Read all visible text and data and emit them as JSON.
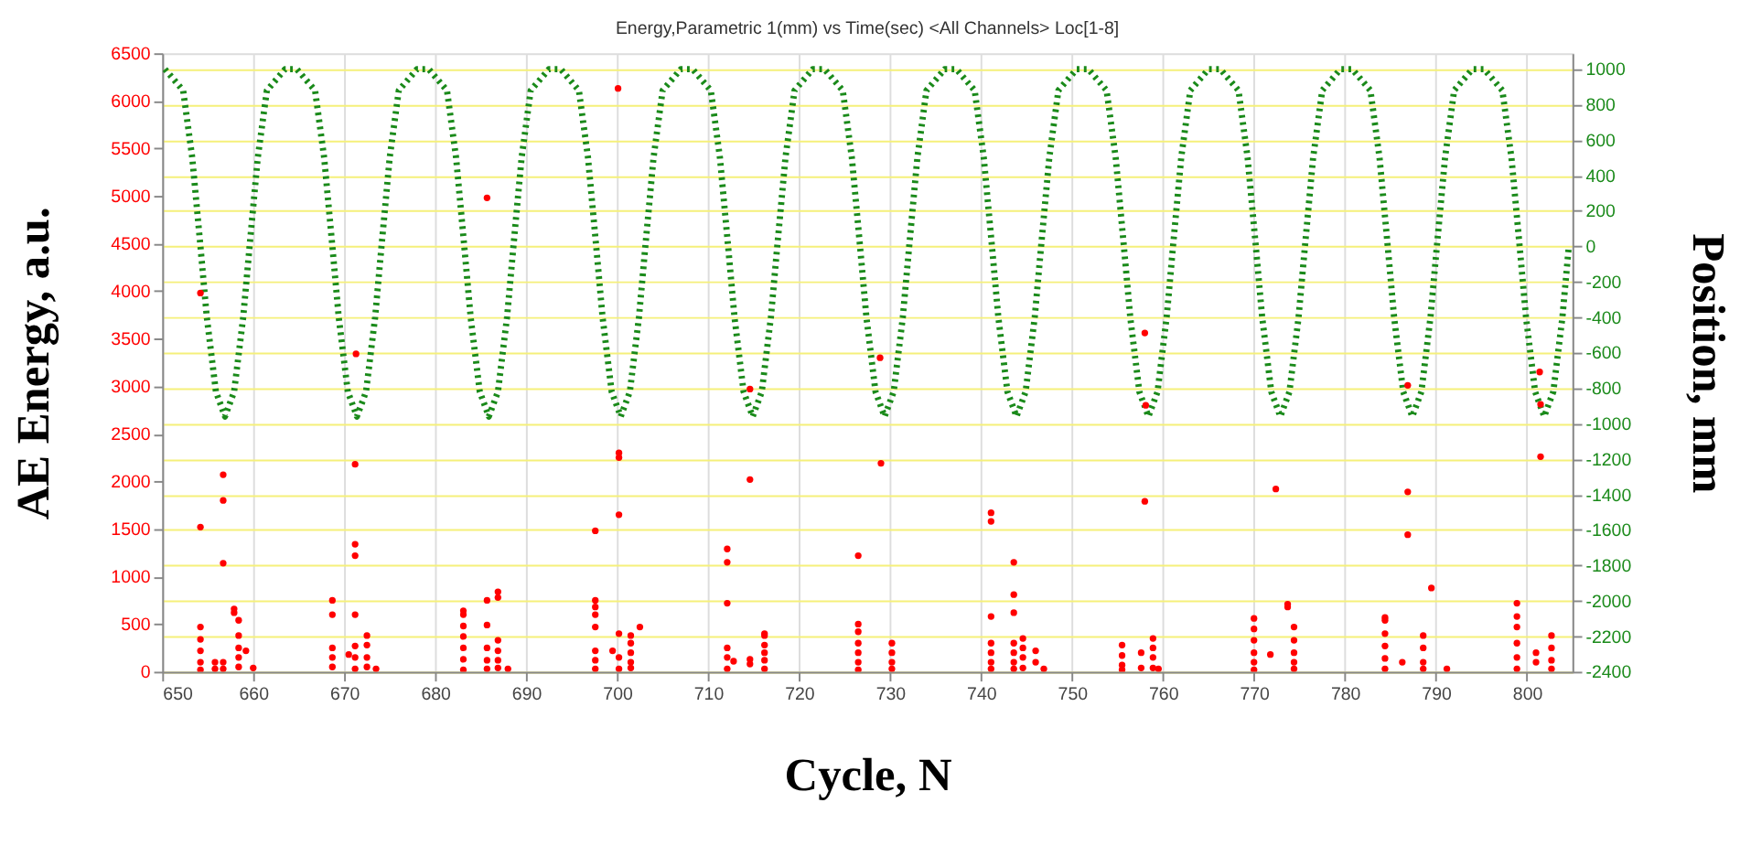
{
  "chart_data": {
    "type": "scatter",
    "title": "Energy,Parametric 1(mm) vs Time(sec) <All Channels> Loc[1-8]",
    "xlabel": "Cycle, N",
    "ylabel": "AE Energy, a.u.",
    "y2label": "Position, mm",
    "xlim": [
      650,
      805
    ],
    "xticks": [
      650,
      660,
      670,
      680,
      690,
      700,
      710,
      720,
      730,
      740,
      750,
      760,
      770,
      780,
      790,
      800
    ],
    "ylim": [
      0,
      6500
    ],
    "yticks": [
      0,
      500,
      1000,
      1500,
      2000,
      2500,
      3000,
      3500,
      4000,
      4500,
      5000,
      5500,
      6000,
      6500
    ],
    "y2lim": [
      -2400,
      1090
    ],
    "y2ticks": [
      -2400,
      -2200,
      -2000,
      -1800,
      -1600,
      -1400,
      -1200,
      -1000,
      -800,
      -600,
      -400,
      -200,
      0,
      200,
      400,
      600,
      800,
      1000
    ],
    "grid": true,
    "legend": false,
    "series": [
      {
        "type": "line",
        "axis": "y2",
        "color": "#1a8a1a",
        "line_style": "dotted",
        "x": [
          650.3,
          652.3,
          653.3,
          654.2,
          654.9,
          655.9,
          656.9,
          657.9,
          658.9,
          659.6,
          660.5,
          661.5,
          663.5,
          664.8,
          666.8,
          667.8,
          668.7,
          669.4,
          670.4,
          671.4,
          672.4,
          673.4,
          674.1,
          675.0,
          676.0,
          678.0,
          679.3,
          681.3,
          682.3,
          683.2,
          683.9,
          684.9,
          685.9,
          686.9,
          687.9,
          688.6,
          689.5,
          690.5,
          692.5,
          693.8,
          695.8,
          696.8,
          697.7,
          698.4,
          699.4,
          700.4,
          701.4,
          702.4,
          703.1,
          704.0,
          705.0,
          707.0,
          708.3,
          710.3,
          711.3,
          712.2,
          712.9,
          713.9,
          714.9,
          715.9,
          716.9,
          717.6,
          718.5,
          719.5,
          721.5,
          722.8,
          724.8,
          725.8,
          726.7,
          727.4,
          728.4,
          729.4,
          730.4,
          731.4,
          732.1,
          733.0,
          734.0,
          736.0,
          737.3,
          739.3,
          740.3,
          741.2,
          741.9,
          742.9,
          743.9,
          744.9,
          745.9,
          746.6,
          747.5,
          748.5,
          750.5,
          751.8,
          753.8,
          754.8,
          755.7,
          756.4,
          757.4,
          758.4,
          759.4,
          760.4,
          761.1,
          762.0,
          763.0,
          765.0,
          766.3,
          768.3,
          769.3,
          770.2,
          770.9,
          771.9,
          772.9,
          773.9,
          774.9,
          775.6,
          776.5,
          777.5,
          779.5,
          780.8,
          782.8,
          783.8,
          784.7,
          785.4,
          786.4,
          787.4,
          788.4,
          789.4,
          790.1,
          791.0,
          792.0,
          794.0,
          795.3,
          797.3,
          798.3,
          799.2,
          799.9,
          800.9,
          801.9,
          802.9,
          803.9,
          804.6
        ],
        "values": [
          1000,
          880,
          500,
          0,
          -400,
          -820,
          -960,
          -820,
          -400,
          0,
          500,
          880,
          1000,
          1000,
          880,
          500,
          0,
          -400,
          -820,
          -960,
          -820,
          -400,
          0,
          500,
          880,
          1000,
          1000,
          880,
          500,
          0,
          -400,
          -820,
          -960,
          -820,
          -400,
          0,
          500,
          880,
          1000,
          1000,
          880,
          500,
          0,
          -400,
          -820,
          -960,
          -820,
          -400,
          0,
          500,
          880,
          1000,
          1000,
          880,
          500,
          0,
          -400,
          -820,
          -960,
          -820,
          -400,
          0,
          500,
          880,
          1000,
          1000,
          880,
          500,
          0,
          -400,
          -820,
          -960,
          -820,
          -400,
          0,
          500,
          880,
          1000,
          1000,
          880,
          500,
          0,
          -400,
          -820,
          -960,
          -820,
          -400,
          0,
          500,
          880,
          1000,
          1000,
          880,
          500,
          0,
          -400,
          -820,
          -960,
          -820,
          -400,
          0,
          500,
          880,
          1000,
          1000,
          880,
          500,
          0,
          -400,
          -820,
          -960,
          -820,
          -400,
          0,
          500,
          880,
          1000,
          1000,
          880,
          500,
          0,
          -400,
          -820,
          -960,
          -820,
          -400,
          0,
          500,
          880,
          1000,
          1000,
          880,
          500,
          0,
          -400,
          -820,
          -960,
          -820,
          -400,
          0
        ]
      },
      {
        "color": "#ff0000",
        "x": [
          654.2,
          654.2,
          654.2,
          654.2,
          654.2,
          654.2,
          654.2,
          655.8,
          655.8,
          656.7,
          656.7,
          656.7,
          656.7,
          656.7,
          657.9,
          657.9,
          658.4,
          658.4,
          658.4,
          658.4,
          658.4,
          659.2,
          660.0,
          668.7,
          668.7,
          668.7,
          668.7,
          668.7,
          670.5,
          671.2,
          671.2,
          671.2,
          671.2,
          671.2,
          671.2,
          671.2,
          671.3,
          672.5,
          672.5,
          672.5,
          672.5,
          673.5,
          683.1,
          683.1,
          683.1,
          683.1,
          683.1,
          683.1,
          683.1,
          685.7,
          685.7,
          685.7,
          685.7,
          685.7,
          685.7,
          686.9,
          686.9,
          686.9,
          686.9,
          686.9,
          686.9,
          688.0,
          697.6,
          697.6,
          697.6,
          697.6,
          697.6,
          697.6,
          697.6,
          697.6,
          699.5,
          700.2,
          700.2,
          700.2,
          700.2,
          700.2,
          700.2,
          700.1,
          701.5,
          701.5,
          701.5,
          701.5,
          701.5,
          702.5,
          712.1,
          712.1,
          712.1,
          712.1,
          712.1,
          712.1,
          712.8,
          714.6,
          714.6,
          714.6,
          714.6,
          716.2,
          716.2,
          716.2,
          716.2,
          716.2,
          716.2,
          726.5,
          726.5,
          726.5,
          726.5,
          726.5,
          726.5,
          726.5,
          728.9,
          729.0,
          730.2,
          730.2,
          730.2,
          730.2,
          741.1,
          741.1,
          741.1,
          741.1,
          741.1,
          741.1,
          741.1,
          743.6,
          743.6,
          743.6,
          743.6,
          743.6,
          743.6,
          743.6,
          744.6,
          744.6,
          744.6,
          744.6,
          746.0,
          746.0,
          746.9,
          755.5,
          755.5,
          755.5,
          755.5,
          757.6,
          757.6,
          758.0,
          758.0,
          758.1,
          758.9,
          758.9,
          758.9,
          758.9,
          759.5,
          770.0,
          770.0,
          770.0,
          770.0,
          770.0,
          770.0,
          771.8,
          772.4,
          773.7,
          773.7,
          774.4,
          774.4,
          774.4,
          774.4,
          774.4,
          784.4,
          784.4,
          784.4,
          784.4,
          784.4,
          784.4,
          786.3,
          786.9,
          786.9,
          786.9,
          788.6,
          788.6,
          788.6,
          788.6,
          789.5,
          791.2,
          798.9,
          798.9,
          798.9,
          798.9,
          798.9,
          798.9,
          801.0,
          801.0,
          801.4,
          801.5,
          801.5,
          802.7,
          802.7,
          802.7,
          802.7
        ],
        "values": [
          1520,
          470,
          340,
          220,
          100,
          20,
          3980,
          100,
          30,
          2070,
          1800,
          1140,
          100,
          30,
          660,
          620,
          540,
          380,
          250,
          150,
          50,
          220,
          40,
          750,
          600,
          250,
          150,
          50,
          180,
          2180,
          1340,
          1220,
          600,
          270,
          150,
          30,
          3340,
          380,
          280,
          150,
          50,
          30,
          640,
          600,
          480,
          370,
          250,
          130,
          20,
          750,
          490,
          250,
          120,
          30,
          4980,
          840,
          780,
          330,
          220,
          120,
          40,
          30,
          1480,
          750,
          680,
          600,
          470,
          220,
          120,
          30,
          220,
          2300,
          2250,
          1650,
          400,
          150,
          30,
          6130,
          380,
          300,
          200,
          100,
          40,
          470,
          1290,
          1150,
          720,
          250,
          150,
          30,
          110,
          2020,
          130,
          80,
          2970,
          400,
          380,
          280,
          200,
          120,
          30,
          1220,
          500,
          420,
          300,
          200,
          100,
          20,
          3300,
          2190,
          300,
          200,
          100,
          30,
          1670,
          1580,
          580,
          300,
          200,
          100,
          30,
          1150,
          810,
          620,
          300,
          200,
          100,
          30,
          350,
          250,
          150,
          40,
          220,
          100,
          30,
          280,
          170,
          70,
          20,
          200,
          40,
          1790,
          3560,
          2800,
          350,
          250,
          150,
          40,
          30,
          560,
          450,
          330,
          200,
          100,
          20,
          180,
          1920,
          710,
          680,
          470,
          330,
          200,
          100,
          30,
          570,
          540,
          400,
          270,
          140,
          30,
          100,
          1890,
          1440,
          3010,
          380,
          250,
          100,
          30,
          880,
          30,
          720,
          580,
          470,
          300,
          150,
          30,
          200,
          100,
          3150,
          2260,
          2810,
          380,
          250,
          120,
          30
        ]
      }
    ]
  }
}
